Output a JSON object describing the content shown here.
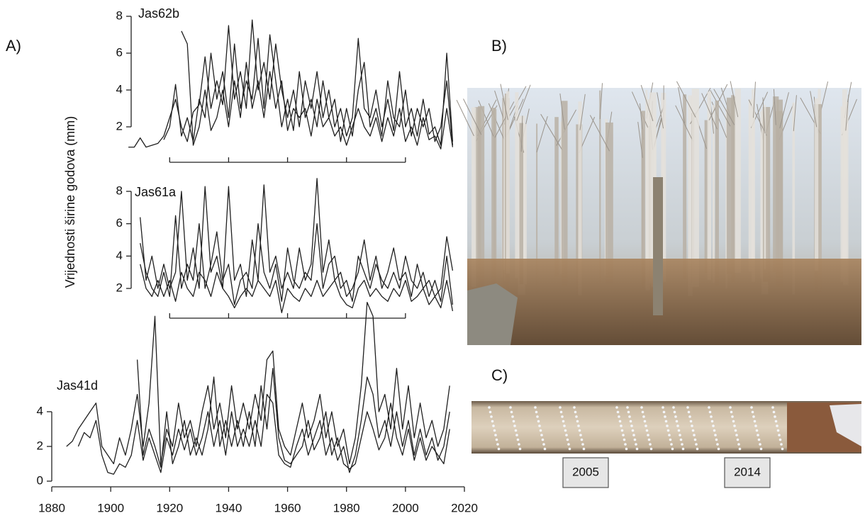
{
  "labels": {
    "panel_a": "A)",
    "panel_b": "B)",
    "panel_c": "C)",
    "ylabel": "Vrijednosti širine godova (mm)",
    "core_marks": [
      "2005",
      "2014"
    ]
  },
  "chart_data": [
    {
      "type": "line",
      "title": "Jas62b",
      "xlim": [
        1880,
        2020
      ],
      "xticks": [
        1920,
        1940,
        1960,
        1980,
        2000
      ],
      "xtick_labels": false,
      "ylim": [
        0,
        8
      ],
      "yticks": [
        2,
        4,
        6,
        8
      ],
      "x": [
        1906,
        1908,
        1910,
        1912,
        1914,
        1916,
        1918,
        1920,
        1922,
        1924,
        1926,
        1928,
        1930,
        1932,
        1934,
        1936,
        1938,
        1940,
        1942,
        1944,
        1946,
        1948,
        1950,
        1952,
        1954,
        1956,
        1958,
        1960,
        1962,
        1964,
        1966,
        1968,
        1970,
        1972,
        1974,
        1976,
        1978,
        1980,
        1982,
        1984,
        1986,
        1988,
        1990,
        1992,
        1994,
        1996,
        1998,
        2000,
        2002,
        2004,
        2006,
        2008,
        2010,
        2012,
        2014,
        2016
      ],
      "series": [
        {
          "color": "#1f1f1f",
          "values": [
            0.9,
            0.9,
            1.4,
            0.9,
            1.0,
            1.1,
            1.5,
            2.5,
            3.5,
            2.0,
            1.2,
            2.8,
            3.2,
            5.8,
            3.0,
            4.5,
            3.2,
            7.5,
            3.5,
            5.0,
            3.0,
            7.8,
            4.0,
            5.5,
            3.5,
            6.5,
            4.0,
            2.5,
            4.0,
            2.0,
            4.5,
            3.0,
            5.0,
            2.5,
            4.0,
            2.0,
            3.0,
            1.5,
            2.5,
            6.8,
            3.0,
            2.5,
            4.0,
            2.0,
            3.5,
            1.8,
            5.0,
            2.0,
            3.0,
            1.5,
            3.5,
            1.6,
            2.0,
            1.0,
            6.0,
            1.2
          ]
        },
        {
          "color": "#1f1f1f",
          "values": [
            null,
            null,
            null,
            null,
            null,
            null,
            1.3,
            2.0,
            4.3,
            1.5,
            2.5,
            1.2,
            3.5,
            2.5,
            6.0,
            3.5,
            5.0,
            2.5,
            6.5,
            3.0,
            4.5,
            3.5,
            6.8,
            3.0,
            7.0,
            4.5,
            2.0,
            3.5,
            1.8,
            5.0,
            2.5,
            3.5,
            2.0,
            4.5,
            2.5,
            3.5,
            1.2,
            3.0,
            1.5,
            4.0,
            5.5,
            2.0,
            3.0,
            1.5,
            4.5,
            2.5,
            2.0,
            4.0,
            1.5,
            3.0,
            2.0,
            3.0,
            1.2,
            2.0,
            4.5,
            1.0
          ]
        },
        {
          "color": "#1f1f1f",
          "values": [
            null,
            null,
            null,
            null,
            null,
            null,
            null,
            null,
            null,
            7.2,
            6.5,
            1.0,
            2.0,
            4.0,
            1.8,
            2.5,
            4.0,
            2.0,
            4.5,
            2.5,
            5.5,
            3.0,
            4.5,
            2.5,
            5.0,
            3.0,
            4.5,
            1.8,
            3.0,
            2.5,
            3.0,
            1.5,
            3.5,
            2.0,
            2.5,
            1.5,
            2.0,
            1.0,
            2.0,
            3.0,
            2.0,
            1.5,
            2.5,
            1.2,
            2.5,
            1.5,
            3.0,
            1.2,
            2.0,
            1.0,
            2.5,
            1.3,
            1.5,
            0.8,
            3.0,
            0.9
          ]
        }
      ]
    },
    {
      "type": "line",
      "title": "Jas61a",
      "xlim": [
        1880,
        2020
      ],
      "xticks": [
        1920,
        1940,
        1960,
        1980,
        2000
      ],
      "xtick_labels": false,
      "ylim": [
        0,
        9
      ],
      "yticks": [
        2,
        4,
        6,
        8
      ],
      "x": [
        1910,
        1912,
        1914,
        1916,
        1918,
        1920,
        1922,
        1924,
        1926,
        1928,
        1930,
        1932,
        1934,
        1936,
        1938,
        1940,
        1942,
        1944,
        1946,
        1948,
        1950,
        1952,
        1954,
        1956,
        1958,
        1960,
        1962,
        1964,
        1966,
        1968,
        1970,
        1972,
        1974,
        1976,
        1978,
        1980,
        1982,
        1984,
        1986,
        1988,
        1990,
        1992,
        1994,
        1996,
        1998,
        2000,
        2002,
        2004,
        2006,
        2008,
        2010,
        2012,
        2014,
        2016
      ],
      "series": [
        {
          "color": "#1f1f1f",
          "values": [
            6.4,
            2.5,
            4.0,
            2.0,
            3.5,
            2.0,
            3.0,
            8.0,
            2.5,
            4.5,
            2.0,
            8.3,
            3.0,
            4.0,
            2.0,
            8.3,
            2.5,
            3.5,
            1.5,
            5.0,
            2.5,
            8.4,
            3.0,
            4.0,
            2.0,
            3.0,
            2.0,
            4.5,
            2.5,
            3.5,
            8.8,
            3.0,
            5.0,
            2.5,
            3.0,
            1.5,
            2.0,
            3.0,
            5.0,
            2.5,
            4.0,
            2.0,
            3.0,
            4.5,
            2.5,
            3.0,
            1.5,
            3.5,
            2.0,
            2.5,
            1.5,
            2.0,
            5.2,
            3.1
          ]
        },
        {
          "color": "#1f1f1f",
          "values": [
            4.8,
            3.0,
            2.0,
            1.5,
            3.0,
            1.5,
            6.5,
            2.0,
            3.5,
            2.5,
            6.0,
            2.0,
            3.5,
            5.5,
            2.5,
            3.5,
            1.0,
            2.5,
            3.0,
            2.0,
            6.0,
            3.0,
            2.0,
            3.5,
            1.2,
            4.5,
            2.5,
            2.0,
            3.0,
            2.5,
            6.0,
            2.0,
            3.5,
            4.0,
            2.0,
            2.5,
            1.2,
            4.0,
            3.0,
            2.0,
            3.5,
            2.5,
            2.0,
            3.0,
            2.0,
            4.0,
            2.5,
            2.0,
            3.0,
            1.5,
            2.5,
            1.2,
            4.0,
            1.0
          ]
        },
        {
          "color": "#1f1f1f",
          "values": [
            3.5,
            2.0,
            1.5,
            2.5,
            1.5,
            2.5,
            1.2,
            3.0,
            2.0,
            1.5,
            3.0,
            2.5,
            1.5,
            3.0,
            2.0,
            1.5,
            0.8,
            1.5,
            2.0,
            1.5,
            2.5,
            2.0,
            1.5,
            2.5,
            0.5,
            2.0,
            1.5,
            1.2,
            2.0,
            1.5,
            2.5,
            1.5,
            2.0,
            2.5,
            1.5,
            1.0,
            0.8,
            2.0,
            2.5,
            1.5,
            2.0,
            1.5,
            1.2,
            2.0,
            1.5,
            2.5,
            1.2,
            1.5,
            2.0,
            1.0,
            1.5,
            0.8,
            2.5,
            0.6
          ]
        }
      ]
    },
    {
      "type": "line",
      "title": "Jas41d",
      "xlim": [
        1880,
        2020
      ],
      "xticks": [
        1880,
        1900,
        1920,
        1940,
        1960,
        1980,
        2000,
        2020
      ],
      "xtick_labels": true,
      "ylim": [
        0,
        6
      ],
      "yticks": [
        0,
        2,
        4
      ],
      "x": [
        1885,
        1887,
        1889,
        1891,
        1893,
        1895,
        1897,
        1899,
        1901,
        1903,
        1905,
        1907,
        1909,
        1911,
        1913,
        1915,
        1917,
        1919,
        1921,
        1923,
        1925,
        1927,
        1929,
        1931,
        1933,
        1935,
        1937,
        1939,
        1941,
        1943,
        1945,
        1947,
        1949,
        1951,
        1953,
        1955,
        1957,
        1959,
        1961,
        1963,
        1965,
        1967,
        1969,
        1971,
        1973,
        1975,
        1977,
        1979,
        1981,
        1983,
        1985,
        1987,
        1989,
        1991,
        1993,
        1995,
        1997,
        1999,
        2001,
        2003,
        2005,
        2007,
        2009,
        2011,
        2013,
        2015
      ],
      "series": [
        {
          "color": "#1f1f1f",
          "values": [
            2.0,
            2.3,
            3.0,
            3.5,
            4.0,
            4.5,
            2.0,
            1.5,
            1.0,
            2.5,
            1.5,
            3.0,
            5.0,
            2.0,
            4.5,
            9.5,
            1.0,
            3.0,
            2.0,
            4.5,
            2.5,
            3.5,
            2.0,
            4.0,
            5.5,
            3.0,
            4.5,
            2.5,
            5.5,
            3.0,
            4.5,
            3.0,
            5.0,
            3.5,
            7.0,
            7.5,
            3.0,
            2.0,
            1.5,
            3.0,
            4.5,
            2.5,
            3.5,
            5.0,
            2.5,
            4.0,
            2.0,
            3.0,
            1.0,
            2.5,
            5.5,
            10.3,
            9.5,
            4.0,
            5.0,
            3.0,
            6.5,
            3.0,
            5.5,
            2.5,
            4.5,
            2.5,
            3.5,
            2.0,
            3.0,
            5.5
          ]
        },
        {
          "color": "#1f1f1f",
          "values": [
            null,
            null,
            2.0,
            2.8,
            2.5,
            3.5,
            1.5,
            0.5,
            0.4,
            1.0,
            0.8,
            1.5,
            3.5,
            1.2,
            2.5,
            1.5,
            0.5,
            2.5,
            1.5,
            3.0,
            1.8,
            3.0,
            1.5,
            2.5,
            4.0,
            2.0,
            3.5,
            1.5,
            4.0,
            2.0,
            3.0,
            2.0,
            3.5,
            2.0,
            5.0,
            4.5,
            1.5,
            1.0,
            0.8,
            2.0,
            3.0,
            1.5,
            2.5,
            3.5,
            1.5,
            2.5,
            1.2,
            2.0,
            0.5,
            1.5,
            3.5,
            6.0,
            5.0,
            2.5,
            3.5,
            2.0,
            4.0,
            2.0,
            3.5,
            1.5,
            3.0,
            1.5,
            2.5,
            1.2,
            2.0,
            4.0
          ]
        },
        {
          "color": "#1f1f1f",
          "values": [
            null,
            null,
            null,
            null,
            null,
            null,
            null,
            null,
            null,
            null,
            null,
            null,
            7.0,
            1.5,
            3.0,
            2.0,
            0.8,
            4.0,
            1.0,
            2.0,
            3.5,
            1.5,
            2.5,
            1.5,
            3.0,
            6.0,
            2.0,
            3.5,
            2.0,
            3.5,
            2.0,
            4.0,
            2.0,
            5.5,
            3.0,
            6.5,
            2.5,
            1.2,
            1.0,
            1.5,
            2.0,
            3.5,
            1.8,
            2.5,
            4.0,
            1.5,
            2.5,
            1.0,
            0.7,
            1.0,
            2.5,
            4.0,
            3.0,
            1.8,
            2.5,
            4.5,
            2.5,
            1.5,
            3.0,
            1.2,
            2.5,
            1.2,
            2.0,
            1.5,
            1.0,
            3.0
          ]
        }
      ]
    }
  ]
}
